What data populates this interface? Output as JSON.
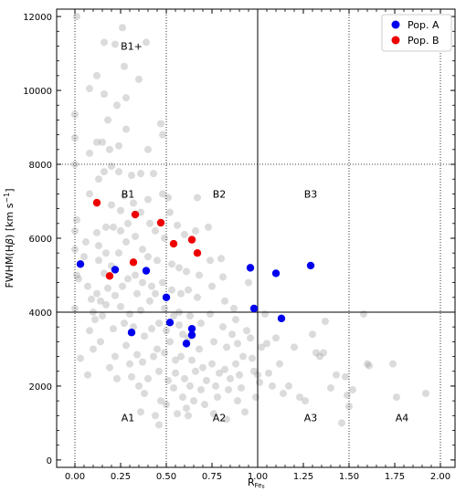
{
  "chart_data": {
    "type": "scatter",
    "title": "",
    "xlabel": "R",
    "xlabel_sub": "Fe",
    "xlabel_subsub": "II",
    "ylabel_main": "FWHM(H",
    "ylabel_beta": "β",
    "ylabel_rest": ") [km s",
    "ylabel_sup": "−1",
    "ylabel_end": "]",
    "xlim": [
      -0.1,
      2.08
    ],
    "ylim": [
      -200,
      12200
    ],
    "xticks": [
      "0.00",
      "0.25",
      "0.50",
      "0.75",
      "1.00",
      "1.25",
      "1.50",
      "1.75",
      "2.00"
    ],
    "xtick_values": [
      0,
      0.25,
      0.5,
      0.75,
      1.0,
      1.25,
      1.5,
      1.75,
      2.0
    ],
    "yticks": [
      "0",
      "2000",
      "4000",
      "6000",
      "8000",
      "10000",
      "12000"
    ],
    "ytick_values": [
      0,
      2000,
      4000,
      6000,
      8000,
      10000,
      12000
    ],
    "dividers": {
      "solid_x": 1.0,
      "solid_y": 4000,
      "dotted_x": [
        0,
        0.5,
        1.5,
        2.0
      ],
      "dotted_y": 8000
    },
    "region_labels": [
      {
        "text": "B1+",
        "x": 0.31,
        "y": 11100
      },
      {
        "text": "B1",
        "x": 0.29,
        "y": 7100
      },
      {
        "text": "B2",
        "x": 0.79,
        "y": 7100
      },
      {
        "text": "B3",
        "x": 1.29,
        "y": 7100
      },
      {
        "text": "A1",
        "x": 0.29,
        "y": 1050
      },
      {
        "text": "A2",
        "x": 0.79,
        "y": 1050
      },
      {
        "text": "A3",
        "x": 1.29,
        "y": 1050
      },
      {
        "text": "A4",
        "x": 1.79,
        "y": 1050
      }
    ],
    "legend": {
      "placement": "top-right",
      "entries": [
        {
          "label": "Pop. A",
          "color": "#0000ee"
        },
        {
          "label": "Pop. B",
          "color": "#ee0000"
        }
      ]
    },
    "series": [
      {
        "name": "Pop. A",
        "color": "#0000ee",
        "points": [
          [
            0.03,
            5300
          ],
          [
            0.22,
            5150
          ],
          [
            0.31,
            3450
          ],
          [
            0.39,
            5120
          ],
          [
            0.5,
            4400
          ],
          [
            0.52,
            3720
          ],
          [
            0.61,
            3150
          ],
          [
            0.64,
            3550
          ],
          [
            0.64,
            3380
          ],
          [
            0.96,
            5200
          ],
          [
            0.98,
            4100
          ],
          [
            1.1,
            5050
          ],
          [
            1.13,
            3830
          ],
          [
            1.29,
            5260
          ]
        ]
      },
      {
        "name": "Pop. B",
        "color": "#ee0000",
        "points": [
          [
            0.12,
            6960
          ],
          [
            0.19,
            4980
          ],
          [
            0.32,
            5350
          ],
          [
            0.33,
            6640
          ],
          [
            0.47,
            6420
          ],
          [
            0.54,
            5850
          ],
          [
            0.64,
            5960
          ],
          [
            0.67,
            5600
          ]
        ]
      }
    ],
    "background_color": "#999999",
    "background_points": [
      [
        0.01,
        12000
      ],
      [
        0.0,
        9350
      ],
      [
        0.0,
        8720
      ],
      [
        0.0,
        8000
      ],
      [
        0.01,
        6500
      ],
      [
        0.0,
        6200
      ],
      [
        0.0,
        5700
      ],
      [
        0.01,
        5000
      ],
      [
        0.02,
        4900
      ],
      [
        0.0,
        4100
      ],
      [
        0.08,
        10050
      ],
      [
        0.08,
        8300
      ],
      [
        0.08,
        7200
      ],
      [
        0.06,
        5900
      ],
      [
        0.07,
        4700
      ],
      [
        0.08,
        3500
      ],
      [
        0.07,
        2300
      ],
      [
        0.1,
        4000
      ],
      [
        0.11,
        3800
      ],
      [
        0.1,
        3000
      ],
      [
        0.12,
        10400
      ],
      [
        0.12,
        8600
      ],
      [
        0.13,
        7600
      ],
      [
        0.12,
        6150
      ],
      [
        0.13,
        5800
      ],
      [
        0.13,
        5400
      ],
      [
        0.12,
        4500
      ],
      [
        0.14,
        4300
      ],
      [
        0.15,
        3900
      ],
      [
        0.14,
        3200
      ],
      [
        0.16,
        11300
      ],
      [
        0.16,
        9900
      ],
      [
        0.15,
        8600
      ],
      [
        0.16,
        7800
      ],
      [
        0.17,
        6300
      ],
      [
        0.17,
        5600
      ],
      [
        0.16,
        5050
      ],
      [
        0.18,
        4650
      ],
      [
        0.17,
        4200
      ],
      [
        0.19,
        2500
      ],
      [
        0.18,
        9200
      ],
      [
        0.19,
        8400
      ],
      [
        0.2,
        7950
      ],
      [
        0.2,
        6900
      ],
      [
        0.21,
        6300
      ],
      [
        0.2,
        5250
      ],
      [
        0.22,
        4450
      ],
      [
        0.21,
        3550
      ],
      [
        0.22,
        2800
      ],
      [
        0.23,
        2200
      ],
      [
        0.22,
        11250
      ],
      [
        0.23,
        9600
      ],
      [
        0.24,
        8500
      ],
      [
        0.24,
        7800
      ],
      [
        0.25,
        6750
      ],
      [
        0.25,
        6200
      ],
      [
        0.24,
        5600
      ],
      [
        0.26,
        4700
      ],
      [
        0.25,
        4150
      ],
      [
        0.27,
        3700
      ],
      [
        0.26,
        11700
      ],
      [
        0.27,
        10650
      ],
      [
        0.28,
        9800
      ],
      [
        0.28,
        8950
      ],
      [
        0.27,
        7150
      ],
      [
        0.29,
        6400
      ],
      [
        0.28,
        5900
      ],
      [
        0.29,
        4900
      ],
      [
        0.3,
        3950
      ],
      [
        0.28,
        3100
      ],
      [
        0.3,
        2600
      ],
      [
        0.31,
        2250
      ],
      [
        0.31,
        7700
      ],
      [
        0.32,
        6950
      ],
      [
        0.33,
        6050
      ],
      [
        0.33,
        5000
      ],
      [
        0.34,
        4500
      ],
      [
        0.32,
        3600
      ],
      [
        0.34,
        2850
      ],
      [
        0.35,
        2000
      ],
      [
        0.35,
        10300
      ],
      [
        0.36,
        7750
      ],
      [
        0.36,
        6700
      ],
      [
        0.37,
        5700
      ],
      [
        0.37,
        4800
      ],
      [
        0.36,
        4050
      ],
      [
        0.38,
        3350
      ],
      [
        0.37,
        2650
      ],
      [
        0.38,
        1800
      ],
      [
        0.36,
        1300
      ],
      [
        0.39,
        11300
      ],
      [
        0.4,
        8400
      ],
      [
        0.4,
        7050
      ],
      [
        0.41,
        6400
      ],
      [
        0.4,
        5500
      ],
      [
        0.42,
        4700
      ],
      [
        0.41,
        4300
      ],
      [
        0.42,
        3550
      ],
      [
        0.43,
        2800
      ],
      [
        0.4,
        2200
      ],
      [
        0.43,
        7750
      ],
      [
        0.44,
        6200
      ],
      [
        0.45,
        5400
      ],
      [
        0.44,
        4500
      ],
      [
        0.46,
        3700
      ],
      [
        0.45,
        3000
      ],
      [
        0.46,
        2400
      ],
      [
        0.47,
        1600
      ],
      [
        0.44,
        1200
      ],
      [
        0.46,
        950
      ],
      [
        0.47,
        9100
      ],
      [
        0.48,
        8800
      ],
      [
        0.48,
        7200
      ],
      [
        0.49,
        6000
      ],
      [
        0.48,
        4800
      ],
      [
        0.49,
        4100
      ],
      [
        0.5,
        3500
      ],
      [
        0.49,
        2900
      ],
      [
        0.51,
        2150
      ],
      [
        0.5,
        1500
      ],
      [
        0.51,
        7100
      ],
      [
        0.52,
        6700
      ],
      [
        0.53,
        5300
      ],
      [
        0.53,
        4600
      ],
      [
        0.54,
        3900
      ],
      [
        0.52,
        3200
      ],
      [
        0.55,
        2700
      ],
      [
        0.54,
        1950
      ],
      [
        0.56,
        1250
      ],
      [
        0.55,
        2350
      ],
      [
        0.56,
        6350
      ],
      [
        0.57,
        5200
      ],
      [
        0.58,
        4500
      ],
      [
        0.57,
        4000
      ],
      [
        0.59,
        3400
      ],
      [
        0.58,
        2800
      ],
      [
        0.6,
        2200
      ],
      [
        0.59,
        1700
      ],
      [
        0.61,
        1400
      ],
      [
        0.57,
        3650
      ],
      [
        0.6,
        6100
      ],
      [
        0.61,
        5100
      ],
      [
        0.62,
        4600
      ],
      [
        0.63,
        3900
      ],
      [
        0.62,
        3300
      ],
      [
        0.64,
        2700
      ],
      [
        0.63,
        2000
      ],
      [
        0.65,
        1600
      ],
      [
        0.62,
        1200
      ],
      [
        0.66,
        2400
      ],
      [
        0.66,
        6200
      ],
      [
        0.67,
        7100
      ],
      [
        0.68,
        5000
      ],
      [
        0.67,
        4400
      ],
      [
        0.69,
        3700
      ],
      [
        0.68,
        3000
      ],
      [
        0.7,
        2500
      ],
      [
        0.69,
        1900
      ],
      [
        0.71,
        1500
      ],
      [
        0.72,
        2150
      ],
      [
        0.73,
        6300
      ],
      [
        0.74,
        5400
      ],
      [
        0.75,
        4700
      ],
      [
        0.74,
        3950
      ],
      [
        0.76,
        3200
      ],
      [
        0.75,
        2600
      ],
      [
        0.77,
        2000
      ],
      [
        0.78,
        1700
      ],
      [
        0.76,
        1250
      ],
      [
        0.79,
        2350
      ],
      [
        0.8,
        5450
      ],
      [
        0.81,
        4950
      ],
      [
        0.82,
        4300
      ],
      [
        0.81,
        3600
      ],
      [
        0.83,
        3050
      ],
      [
        0.82,
        2450
      ],
      [
        0.84,
        1900
      ],
      [
        0.85,
        2200
      ],
      [
        0.83,
        1100
      ],
      [
        0.86,
        3400
      ],
      [
        0.87,
        4100
      ],
      [
        0.88,
        3800
      ],
      [
        0.89,
        3150
      ],
      [
        0.88,
        2600
      ],
      [
        0.9,
        2300
      ],
      [
        0.91,
        1950
      ],
      [
        0.89,
        1600
      ],
      [
        0.92,
        2800
      ],
      [
        0.93,
        1300
      ],
      [
        0.94,
        3500
      ],
      [
        0.95,
        4800
      ],
      [
        0.96,
        3300
      ],
      [
        0.97,
        2750
      ],
      [
        0.98,
        2400
      ],
      [
        0.99,
        1700
      ],
      [
        1.0,
        2300
      ],
      [
        1.01,
        2100
      ],
      [
        1.02,
        3050
      ],
      [
        1.04,
        3950
      ],
      [
        1.05,
        3150
      ],
      [
        1.06,
        2350
      ],
      [
        1.08,
        2000
      ],
      [
        1.1,
        3300
      ],
      [
        1.12,
        2600
      ],
      [
        1.14,
        1800
      ],
      [
        1.17,
        2000
      ],
      [
        1.2,
        3050
      ],
      [
        1.23,
        1700
      ],
      [
        1.26,
        1600
      ],
      [
        1.3,
        3400
      ],
      [
        1.32,
        2900
      ],
      [
        1.34,
        2800
      ],
      [
        1.36,
        2900
      ],
      [
        1.37,
        3750
      ],
      [
        1.4,
        1950
      ],
      [
        1.43,
        2300
      ],
      [
        1.46,
        1000
      ],
      [
        1.48,
        2250
      ],
      [
        1.49,
        1750
      ],
      [
        1.5,
        1450
      ],
      [
        1.52,
        1900
      ],
      [
        1.58,
        3950
      ],
      [
        1.6,
        2600
      ],
      [
        1.61,
        2550
      ],
      [
        1.74,
        2600
      ],
      [
        1.76,
        1700
      ],
      [
        1.92,
        1800
      ],
      [
        0.03,
        2750
      ],
      [
        0.05,
        5500
      ],
      [
        0.09,
        4350
      ]
    ]
  }
}
